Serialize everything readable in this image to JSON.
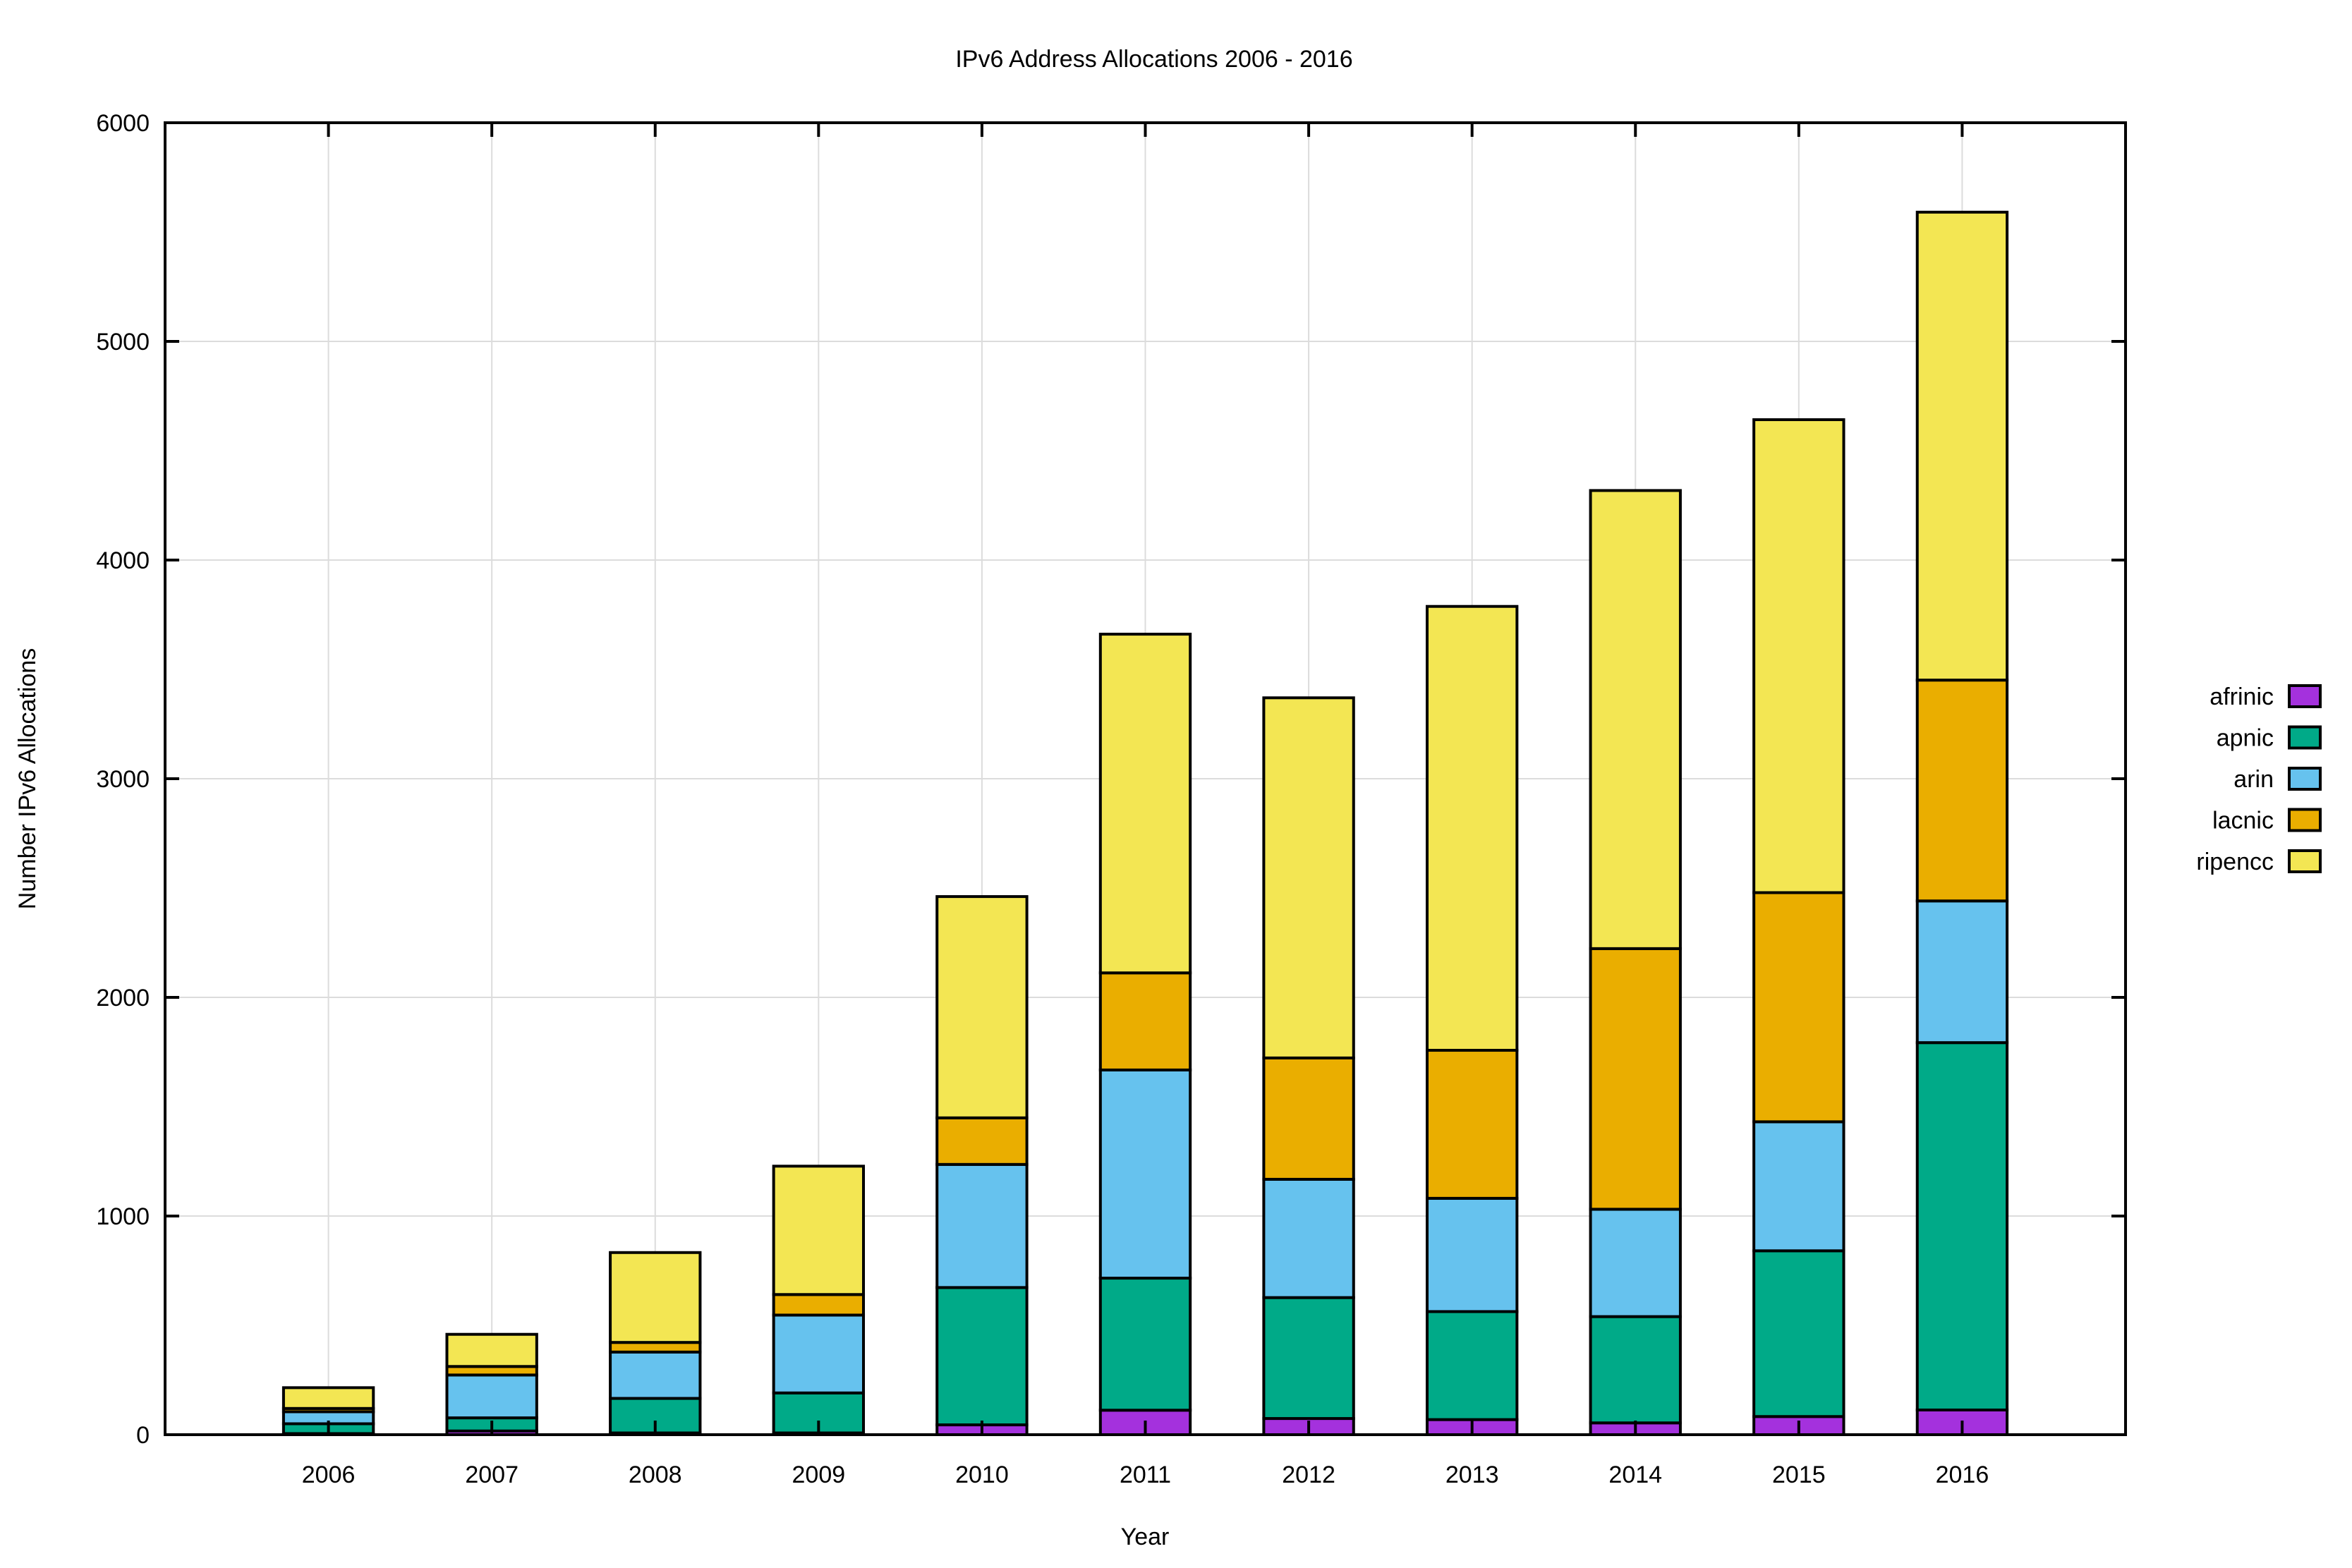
{
  "chart_data": {
    "type": "bar",
    "stacked": true,
    "title": "IPv6 Address Allocations 2006 - 2016",
    "xlabel": "Year",
    "ylabel": "Number IPv6 Allocations",
    "ylim": [
      0,
      6000
    ],
    "yticks": [
      0,
      1000,
      2000,
      3000,
      4000,
      5000,
      6000
    ],
    "grid": true,
    "legend_position": "right",
    "categories": [
      "2006",
      "2007",
      "2008",
      "2009",
      "2010",
      "2011",
      "2012",
      "2013",
      "2014",
      "2015",
      "2016"
    ],
    "series": [
      {
        "name": "afrinic",
        "color": "#a431dd",
        "values": [
          5,
          17,
          8,
          8,
          45,
          112,
          74,
          69,
          54,
          83,
          113
        ]
      },
      {
        "name": "apnic",
        "color": "#00aa88",
        "values": [
          45,
          60,
          158,
          183,
          628,
          604,
          553,
          494,
          486,
          758,
          1680
        ]
      },
      {
        "name": "arin",
        "color": "#66c2ee",
        "values": [
          55,
          196,
          212,
          356,
          563,
          952,
          541,
          518,
          491,
          590,
          648
        ]
      },
      {
        "name": "lacnic",
        "color": "#eaae00",
        "values": [
          15,
          39,
          44,
          94,
          213,
          444,
          555,
          677,
          1192,
          1048,
          1010
        ]
      },
      {
        "name": "ripencc",
        "color": "#f3e653",
        "values": [
          95,
          147,
          411,
          587,
          1012,
          1549,
          1647,
          2030,
          2095,
          2163,
          2140
        ]
      }
    ]
  }
}
